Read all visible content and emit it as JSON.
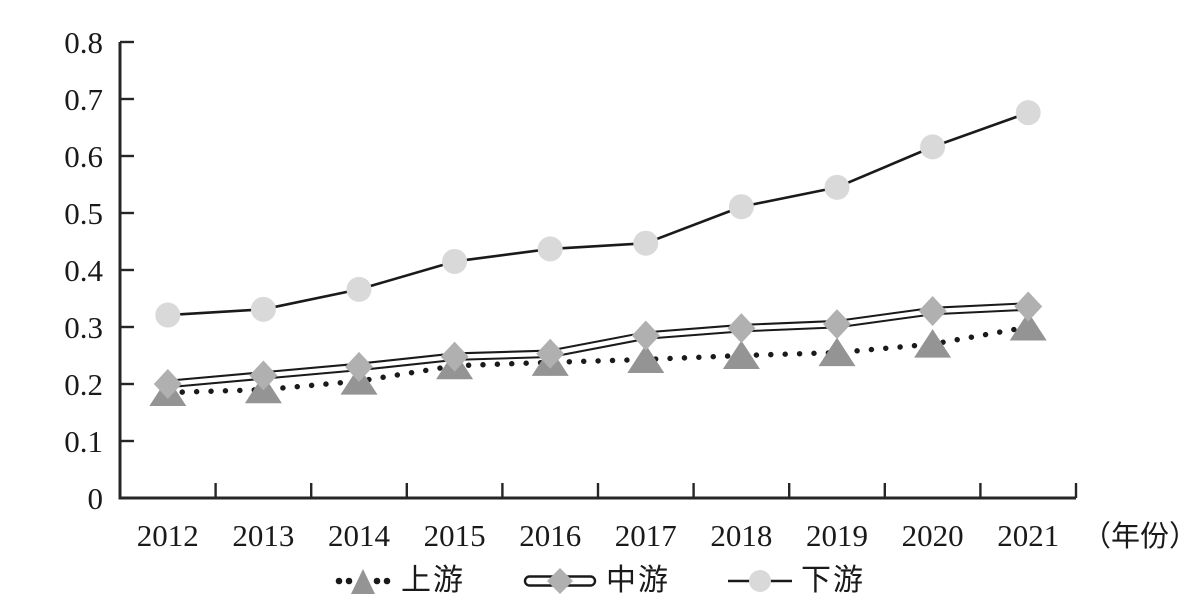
{
  "chart_data": {
    "type": "line",
    "title": "",
    "x_axis_unit_label": "（年份）",
    "categories": [
      "2012",
      "2013",
      "2014",
      "2015",
      "2016",
      "2017",
      "2018",
      "2019",
      "2020",
      "2021"
    ],
    "y_tick_labels": [
      "0",
      "0.1",
      "0.2",
      "0.3",
      "0.4",
      "0.5",
      "0.6",
      "0.7",
      "0.8"
    ],
    "ylim": [
      0,
      0.8
    ],
    "grid": false,
    "legend_position": "bottom",
    "line_color": "#1a1a1a",
    "axis_color": "#262626",
    "series": [
      {
        "name": "上游",
        "line_style": "dotted",
        "marker": "triangle",
        "marker_color": "#949494",
        "values": [
          0.185,
          0.19,
          0.205,
          0.232,
          0.238,
          0.243,
          0.25,
          0.255,
          0.27,
          0.3
        ]
      },
      {
        "name": "中游",
        "line_style": "double",
        "marker": "diamond",
        "marker_color": "#b0b0b0",
        "values": [
          0.2,
          0.215,
          0.23,
          0.248,
          0.253,
          0.285,
          0.298,
          0.305,
          0.328,
          0.336
        ]
      },
      {
        "name": "下游",
        "line_style": "solid",
        "marker": "circle",
        "marker_color": "#d9d9d9",
        "values": [
          0.321,
          0.331,
          0.366,
          0.415,
          0.437,
          0.447,
          0.511,
          0.545,
          0.616,
          0.676
        ]
      }
    ]
  }
}
